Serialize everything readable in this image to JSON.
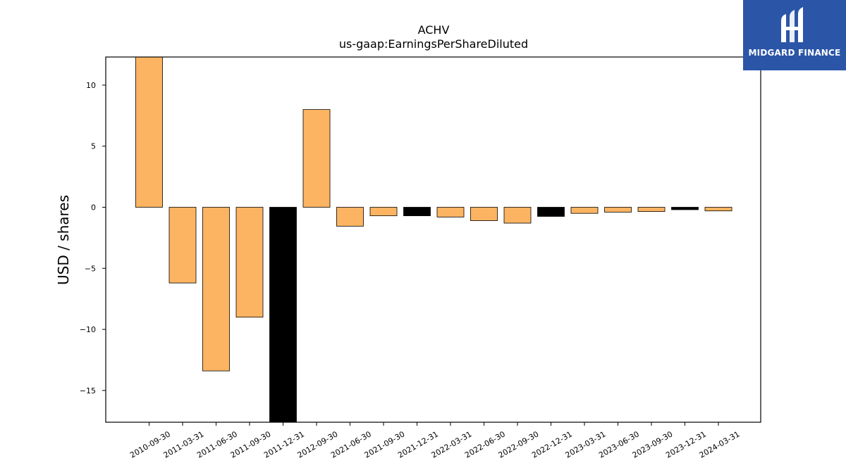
{
  "chart_data": {
    "type": "bar",
    "title": "ACHV",
    "subtitle": "us-gaap:EarningsPerShareDiluted",
    "ylabel": "USD / shares",
    "xlabel": "",
    "ylim": [
      -17.6,
      12.3
    ],
    "yticks": [
      10,
      5,
      0,
      -5,
      -10,
      -15
    ],
    "ytick_labels": [
      "10",
      "5",
      "0",
      "−5",
      "−10",
      "−15"
    ],
    "grid": false,
    "categories": [
      "2010-09-30",
      "2011-03-31",
      "2011-06-30",
      "2011-09-30",
      "2011-12-31",
      "2012-09-30",
      "2021-06-30",
      "2021-09-30",
      "2021-12-31",
      "2022-03-31",
      "2022-06-30",
      "2022-09-30",
      "2022-12-31",
      "2023-03-31",
      "2023-06-30",
      "2023-09-30",
      "2023-12-31",
      "2024-03-31"
    ],
    "values": [
      12.5,
      -6.2,
      -13.4,
      -9.0,
      -18.0,
      8.0,
      -1.55,
      -0.7,
      -0.7,
      -0.8,
      -1.1,
      -1.3,
      -0.75,
      -0.5,
      -0.4,
      -0.35,
      -0.2,
      -0.3
    ],
    "bar_colors": [
      "#fdb462",
      "#fdb462",
      "#fdb462",
      "#fdb462",
      "#000000",
      "#fdb462",
      "#fdb462",
      "#fdb462",
      "#000000",
      "#fdb462",
      "#fdb462",
      "#fdb462",
      "#000000",
      "#fdb462",
      "#fdb462",
      "#fdb462",
      "#000000",
      "#fdb462"
    ]
  },
  "logo": {
    "text": "MIDGARD FINANCE"
  }
}
